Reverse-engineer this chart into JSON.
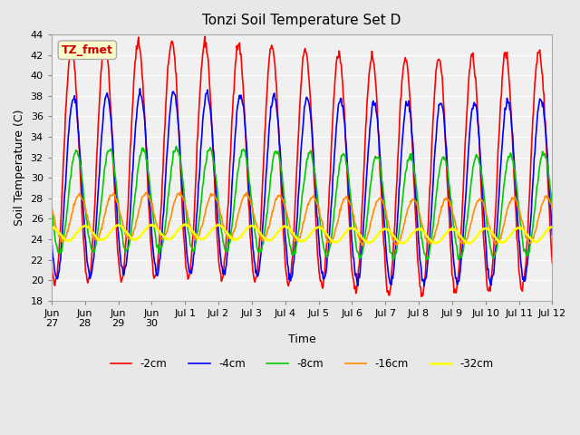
{
  "title": "Tonzi Soil Temperature Set D",
  "xlabel": "Time",
  "ylabel": "Soil Temperature (C)",
  "ylim": [
    18,
    44
  ],
  "yticks": [
    18,
    20,
    22,
    24,
    26,
    28,
    30,
    32,
    34,
    36,
    38,
    40,
    42,
    44
  ],
  "series": [
    {
      "label": "-2cm",
      "color": "#FF0000",
      "lw": 1.2
    },
    {
      "label": "-4cm",
      "color": "#0000FF",
      "lw": 1.2
    },
    {
      "label": "-8cm",
      "color": "#00CC00",
      "lw": 1.2
    },
    {
      "label": "-16cm",
      "color": "#FF8C00",
      "lw": 1.2
    },
    {
      "label": "-32cm",
      "color": "#FFFF00",
      "lw": 1.8
    }
  ],
  "xtick_labels": [
    "Jun\n27",
    "Jun\n28",
    "Jun\n29",
    "Jun\n30",
    "Jul 1",
    "Jul 2",
    "Jul 3",
    "Jul 4",
    "Jul 5",
    "Jul 6",
    "Jul 7",
    "Jul 8",
    "Jul 9",
    "Jul 10",
    "Jul 11",
    "Jul 12"
  ],
  "annotation_text": "TZ_fmet",
  "annotation_fc": "#FFFFCC",
  "annotation_ec": "#AAAAAA",
  "annotation_color": "#CC0000",
  "bg_color": "#E8E8E8",
  "plot_bg_color": "#F0F0F0",
  "n_days": 15,
  "points_per_day": 48
}
